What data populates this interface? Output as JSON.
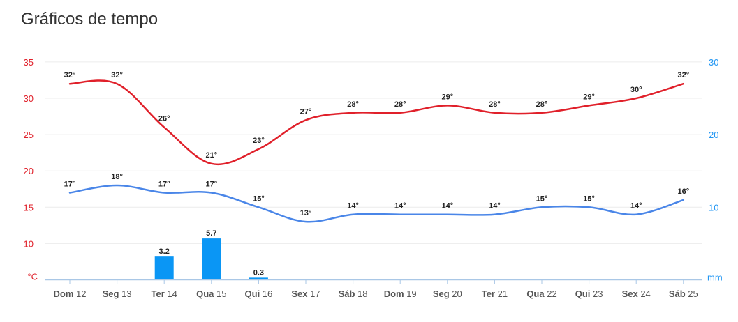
{
  "header": {
    "title": "Gráficos de tempo"
  },
  "chart_data": {
    "type": "line",
    "categories": [
      {
        "day": "Dom",
        "num": "12"
      },
      {
        "day": "Seg",
        "num": "13"
      },
      {
        "day": "Ter",
        "num": "14"
      },
      {
        "day": "Qua",
        "num": "15"
      },
      {
        "day": "Qui",
        "num": "16"
      },
      {
        "day": "Sex",
        "num": "17"
      },
      {
        "day": "Sáb",
        "num": "18"
      },
      {
        "day": "Dom",
        "num": "19"
      },
      {
        "day": "Seg",
        "num": "20"
      },
      {
        "day": "Ter",
        "num": "21"
      },
      {
        "day": "Qua",
        "num": "22"
      },
      {
        "day": "Qui",
        "num": "23"
      },
      {
        "day": "Sex",
        "num": "24"
      },
      {
        "day": "Sáb",
        "num": "25"
      }
    ],
    "series": [
      {
        "type": "line",
        "axis": "left",
        "color": "#e0202a",
        "values": [
          32,
          32,
          26,
          21,
          23,
          27,
          28,
          28,
          29,
          28,
          28,
          29,
          30,
          32
        ],
        "labels": [
          "32°",
          "32°",
          "26°",
          "21°",
          "23°",
          "27°",
          "28°",
          "28°",
          "29°",
          "28°",
          "28°",
          "29°",
          "30°",
          "32°"
        ]
      },
      {
        "type": "line",
        "axis": "left",
        "color": "#4a86e8",
        "values": [
          17,
          18,
          17,
          17,
          15,
          13,
          14,
          14,
          14,
          14,
          15,
          15,
          14,
          16
        ],
        "labels": [
          "17°",
          "18°",
          "17°",
          "17°",
          "15°",
          "13°",
          "14°",
          "14°",
          "14°",
          "14°",
          "15°",
          "15°",
          "14°",
          "16°"
        ]
      },
      {
        "type": "bar",
        "axis": "right",
        "color": "#0a96f5",
        "values": [
          0,
          0,
          3.2,
          5.7,
          0.3,
          0,
          0,
          0,
          0,
          0,
          0,
          0,
          0,
          0
        ],
        "labels": [
          "",
          "",
          "3.2",
          "5.7",
          "0.3",
          "",
          "",
          "",
          "",
          "",
          "",
          "",
          "",
          ""
        ]
      }
    ],
    "y_left": {
      "unit": "°C",
      "ticks": [
        "35",
        "30",
        "25",
        "20",
        "15",
        "10"
      ],
      "color": "#e0202a",
      "range": [
        5,
        35
      ]
    },
    "y_right": {
      "unit": "mm",
      "ticks": [
        "30",
        "20",
        "10"
      ],
      "color": "#2196f3",
      "range": [
        0,
        30
      ]
    },
    "grid": true
  }
}
